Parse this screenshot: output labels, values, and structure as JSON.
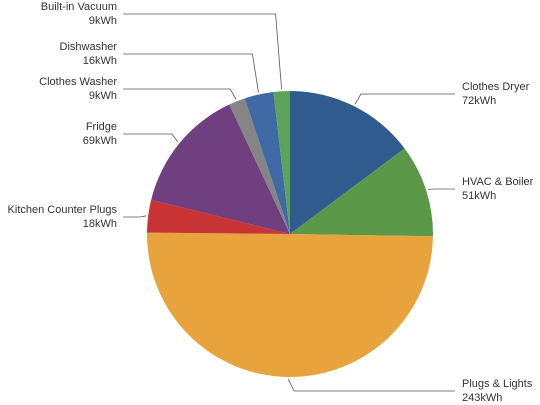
{
  "chart_data": {
    "type": "pie",
    "categories": [
      "Clothes Dryer",
      "HVAC & Boiler",
      "Plugs & Lights",
      "Kitchen Counter Plugs",
      "Fridge",
      "Clothes Washer",
      "Dishwasher",
      "Built-in Vacuum"
    ],
    "values": [
      72,
      51,
      243,
      18,
      69,
      9,
      16,
      9
    ],
    "value_labels": [
      "72kWh",
      "51kWh",
      "243kWh",
      "18kWh",
      "69kWh",
      "9kWh",
      "16kWh",
      "9kWh"
    ],
    "colors": [
      "#2f5b8e",
      "#5b9848",
      "#e8a33c",
      "#c93535",
      "#6f3f7f",
      "#858585",
      "#3f6aa6",
      "#5ea35a"
    ]
  }
}
